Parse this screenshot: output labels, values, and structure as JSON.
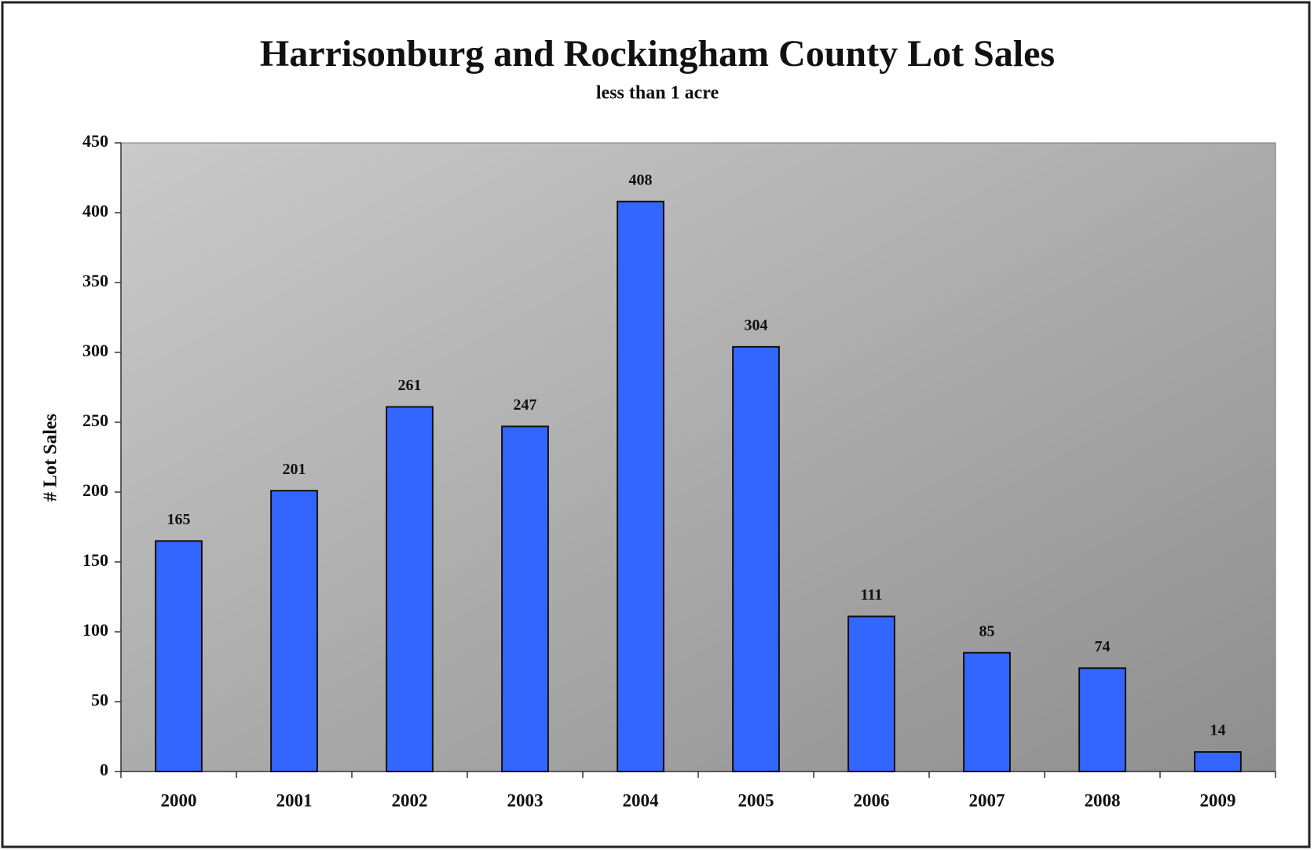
{
  "chart_data": {
    "type": "bar",
    "title": "Harrisonburg and Rockingham County Lot Sales",
    "subtitle": "less than 1 acre",
    "y_label": "# Lot Sales",
    "categories": [
      "2000",
      "2001",
      "2002",
      "2003",
      "2004",
      "2005",
      "2006",
      "2007",
      "2008",
      "2009"
    ],
    "values": [
      165,
      201,
      261,
      247,
      408,
      304,
      111,
      85,
      74,
      14
    ],
    "color": "#3366ff",
    "ylim": [
      0,
      450
    ],
    "yticks": [
      0,
      50,
      100,
      150,
      200,
      250,
      300,
      350,
      400,
      450
    ],
    "grid": false
  }
}
